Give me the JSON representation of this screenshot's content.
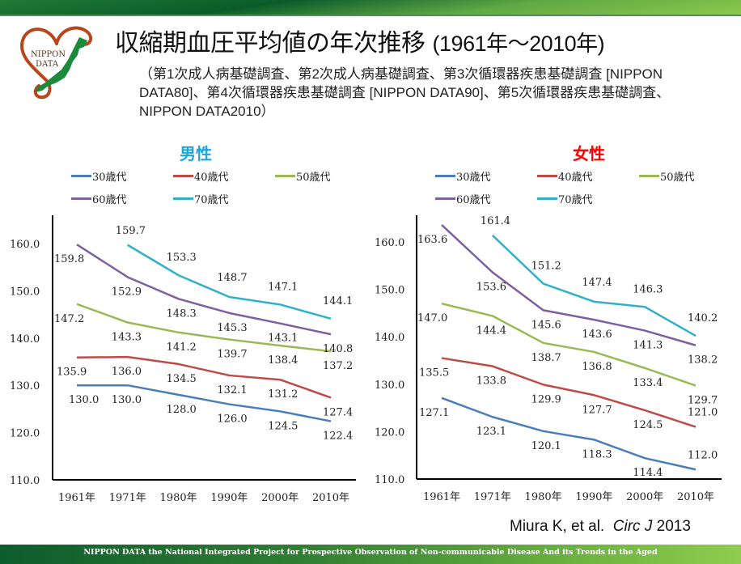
{
  "header": {
    "title_main": "収縮期血圧平均値の年次推移",
    "title_suffix": "(1961年～2010年)",
    "subtitle": "（第1次成人病基礎調査、第2次成人病基礎調査、第3次循環器疾患基礎調査 [NIPPON DATA80]、第4次循環器疾患基礎調査 [NIPPON DATA90]、第5次循環器疾患基礎調査、NIPPON DATA2010）",
    "logo_text_line1": "NIPPON",
    "logo_text_line2": "DATA"
  },
  "colors": {
    "30s": "#4a7ebb",
    "40s": "#be4b48",
    "50s": "#98b954",
    "60s": "#7d60a0",
    "70s": "#31b1c8",
    "male_title": "#1aa6e0",
    "female_title": "#ff0000"
  },
  "chart_data": [
    {
      "type": "line",
      "title": "男性",
      "xlabel": "",
      "ylabel": "",
      "ylim": [
        110,
        160
      ],
      "yticks": [
        "110.0",
        "120.0",
        "130.0",
        "140.0",
        "150.0",
        "160.0"
      ],
      "categories": [
        "1961年",
        "1971年",
        "1980年",
        "1990年",
        "2000年",
        "2010年"
      ],
      "legend_position": "top",
      "grid": false,
      "series": [
        {
          "name": "30歳代",
          "key": "30s",
          "values": [
            130.0,
            130.0,
            128.0,
            126.0,
            124.5,
            122.4
          ]
        },
        {
          "name": "40歳代",
          "key": "40s",
          "values": [
            135.9,
            136.0,
            134.5,
            132.1,
            131.2,
            127.4
          ]
        },
        {
          "name": "50歳代",
          "key": "50s",
          "values": [
            147.2,
            143.3,
            141.2,
            139.7,
            138.4,
            137.2
          ]
        },
        {
          "name": "60歳代",
          "key": "60s",
          "values": [
            159.8,
            152.9,
            148.3,
            145.3,
            143.1,
            140.8
          ]
        },
        {
          "name": "70歳代",
          "key": "70s",
          "values": [
            null,
            159.7,
            153.3,
            148.7,
            147.1,
            144.1
          ]
        }
      ]
    },
    {
      "type": "line",
      "title": "女性",
      "xlabel": "",
      "ylabel": "",
      "ylim": [
        110,
        160
      ],
      "yticks": [
        "110.0",
        "120.0",
        "130.0",
        "140.0",
        "150.0",
        "160.0"
      ],
      "categories": [
        "1961年",
        "1971年",
        "1980年",
        "1990年",
        "2000年",
        "2010年"
      ],
      "legend_position": "top",
      "grid": false,
      "series": [
        {
          "name": "30歳代",
          "key": "30s",
          "values": [
            127.1,
            123.1,
            120.1,
            118.3,
            114.4,
            112.0
          ]
        },
        {
          "name": "40歳代",
          "key": "40s",
          "values": [
            135.5,
            133.8,
            129.9,
            127.7,
            124.5,
            121.0
          ]
        },
        {
          "name": "50歳代",
          "key": "50s",
          "values": [
            147.0,
            144.4,
            138.7,
            136.8,
            133.4,
            129.7
          ]
        },
        {
          "name": "60歳代",
          "key": "60s",
          "values": [
            163.6,
            153.6,
            145.6,
            143.6,
            141.3,
            138.2
          ]
        },
        {
          "name": "70歳代",
          "key": "70s",
          "values": [
            null,
            161.4,
            151.2,
            147.4,
            146.3,
            140.2
          ]
        }
      ]
    }
  ],
  "citation": {
    "authors": "Miura K, et al.",
    "journal": "Circ J",
    "year": "2013"
  },
  "footer": {
    "text": "NIPPON DATA    the National Integrated Project  for Prospective Observation of Non-communicable Disease And its Trends in the Aged"
  }
}
